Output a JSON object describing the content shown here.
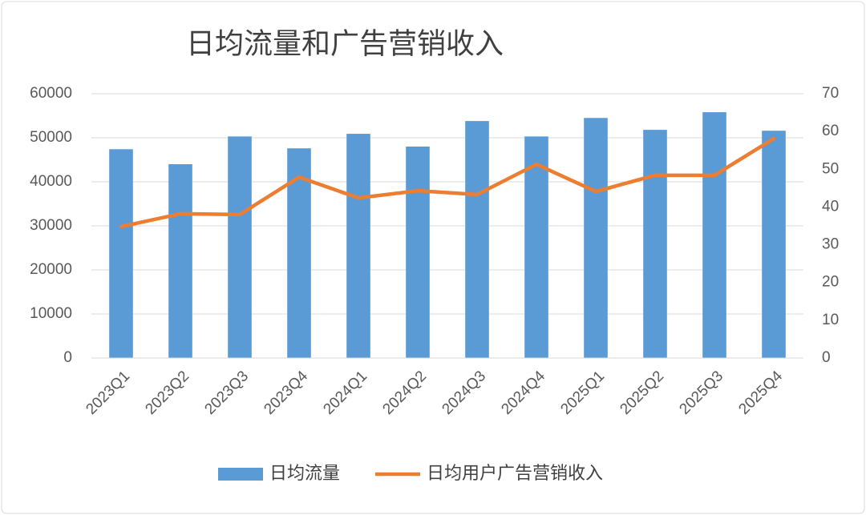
{
  "chart_data": {
    "type": "bar",
    "title": "日均流量和广告营销收入",
    "categories": [
      "2023Q1",
      "2023Q2",
      "2023Q3",
      "2023Q4",
      "2024Q1",
      "2024Q2",
      "2024Q3",
      "2024Q4",
      "2025Q1",
      "2025Q2",
      "2025Q3",
      "2025Q4"
    ],
    "series": [
      {
        "name": "日均流量",
        "color": "#5b9bd5",
        "values": [
          47400,
          44000,
          50300,
          47600,
          50900,
          48000,
          53800,
          50300,
          54500,
          51800,
          55800,
          51600
        ]
      },
      {
        "name": "日均用户广告营销收入",
        "color": "#ed7d31",
        "type": "line",
        "axis": "y2",
        "values": [
          34.8,
          38.2,
          38,
          47.9,
          42.4,
          44.3,
          43.3,
          51.3,
          44.1,
          48.4,
          48.4,
          58.1
        ]
      }
    ],
    "ylim": [
      0,
      60000
    ],
    "yticks": [
      0,
      10000,
      20000,
      30000,
      40000,
      50000,
      60000
    ],
    "y2lim": [
      0,
      70
    ],
    "y2ticks": [
      0,
      10,
      20,
      30,
      40,
      50,
      60,
      70
    ],
    "grid": true,
    "legend": "bottom"
  }
}
